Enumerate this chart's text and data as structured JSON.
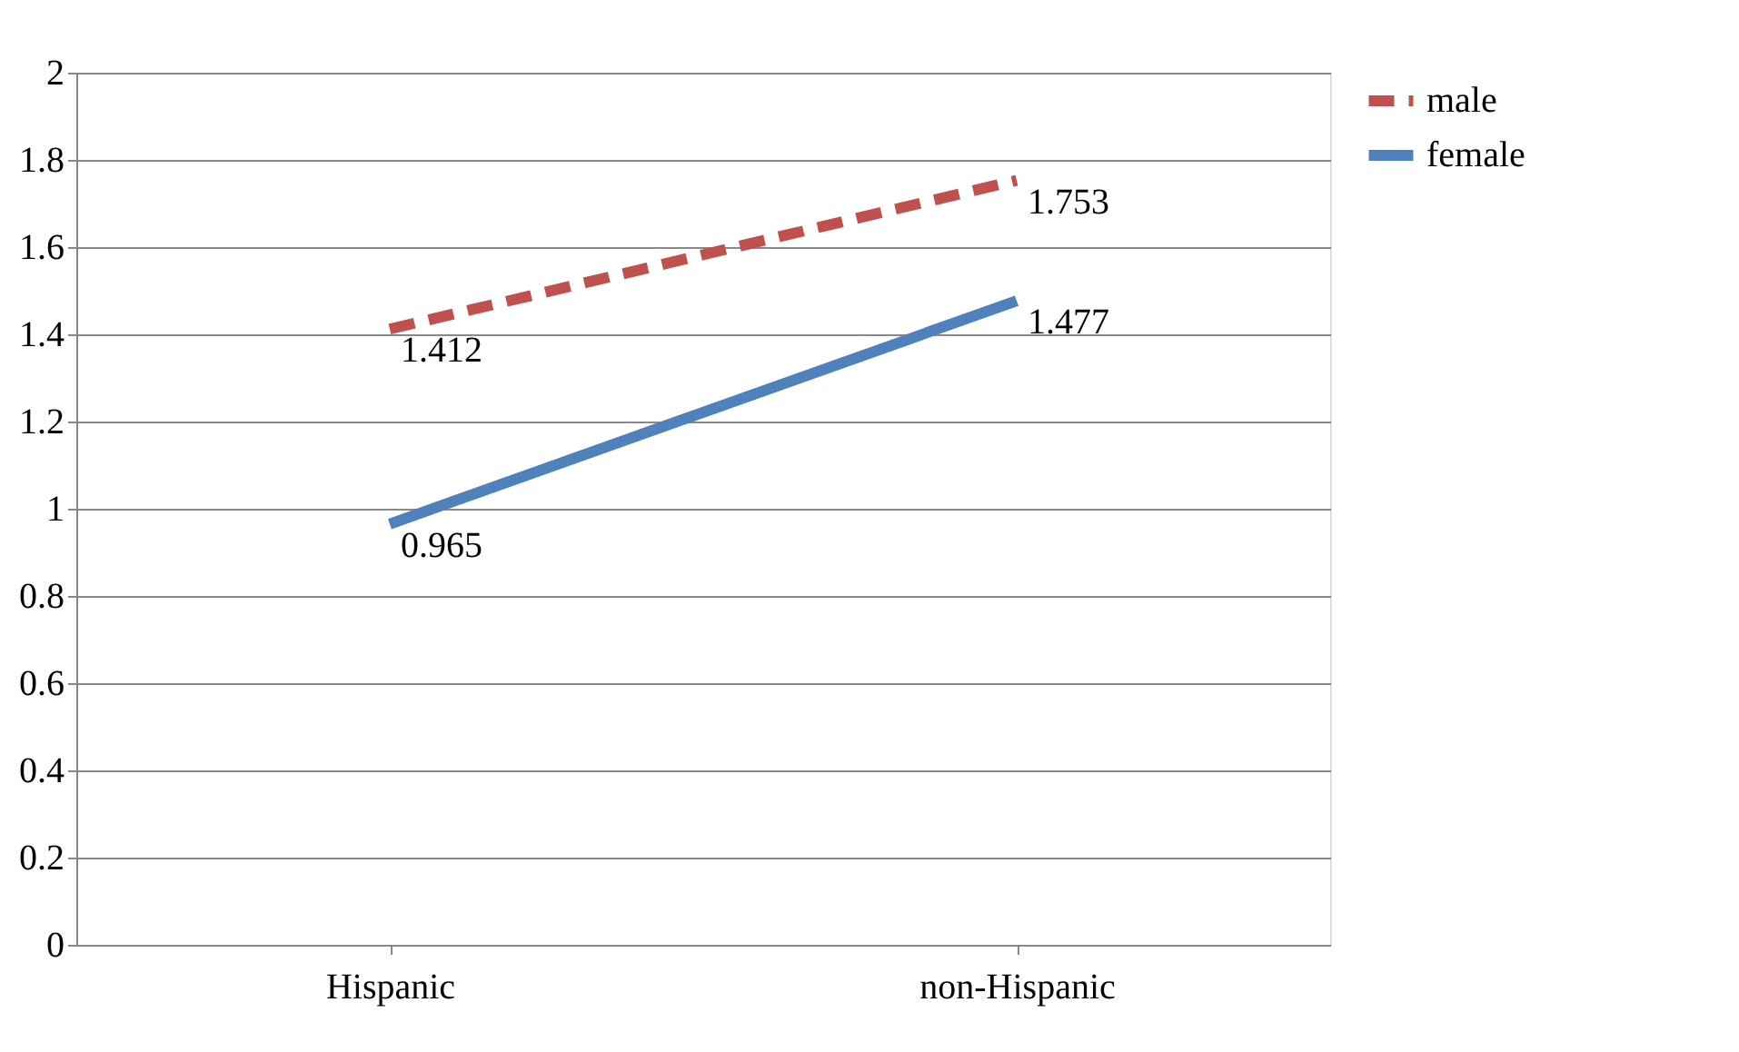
{
  "chart_data": {
    "type": "line",
    "categories": [
      "Hispanic",
      "non-Hispanic"
    ],
    "series": [
      {
        "name": "male",
        "color": "#c0504d",
        "line_style": "dashed",
        "values": [
          1.412,
          1.753
        ]
      },
      {
        "name": "female",
        "color": "#4f81bd",
        "line_style": "solid",
        "values": [
          0.965,
          1.477
        ]
      }
    ],
    "ylim": [
      0,
      2
    ],
    "yticks": [
      0,
      0.2,
      0.4,
      0.6,
      0.8,
      1,
      1.2,
      1.4,
      1.6,
      1.8,
      2
    ],
    "grid": "y",
    "legend": "right",
    "data_labels": true,
    "marker": "none"
  }
}
